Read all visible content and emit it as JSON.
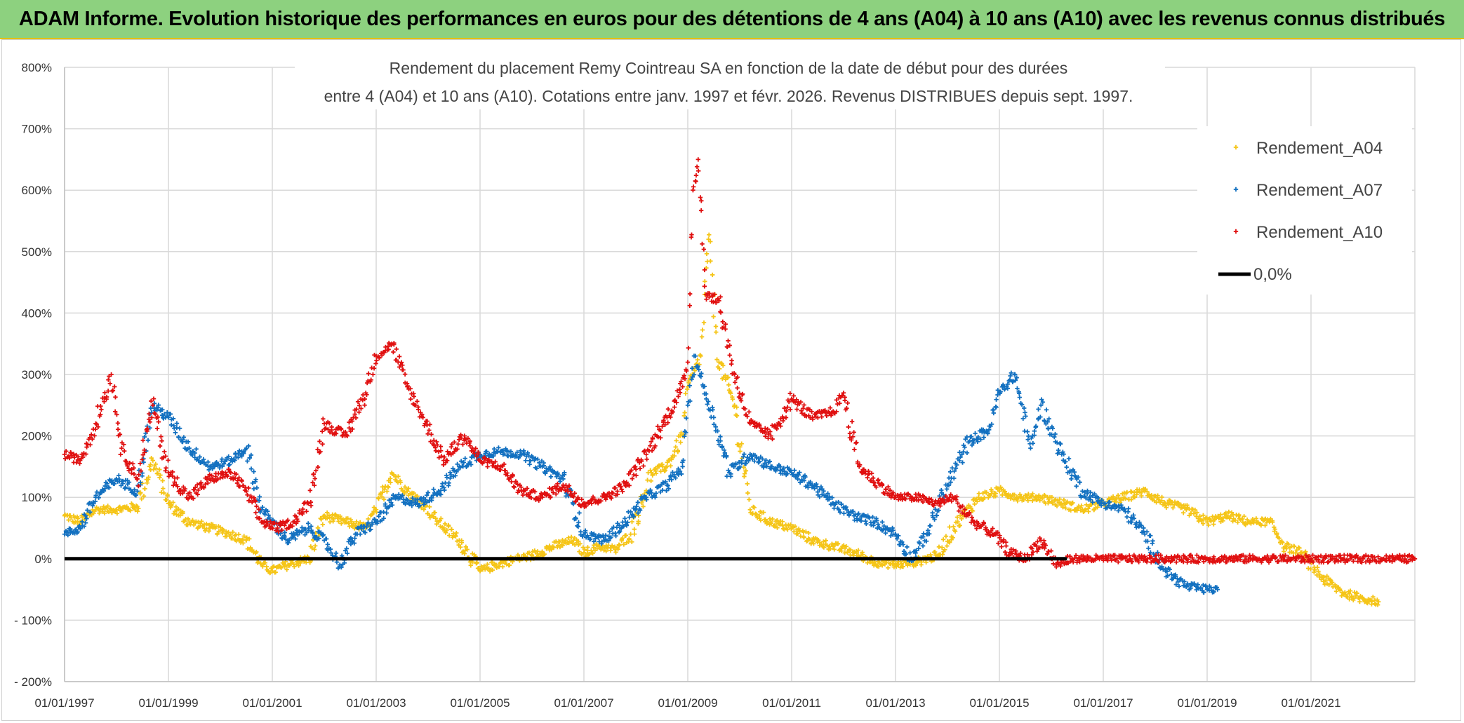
{
  "header": {
    "title": "ADAM Informe. Evolution historique des performances en euros pour des détentions de 4 ans (A04) à 10 ans (A10) avec les revenus connus distribués"
  },
  "chart_data": {
    "type": "scatter",
    "title_lines": [
      "Rendement du placement Remy Cointreau SA en fonction de la date de début pour des durées",
      "entre 4 (A04) et 10 ans (A10). Cotations entre janv. 1997 et févr. 2026. Revenus DISTRIBUES depuis sept. 1997."
    ],
    "xlabel": "",
    "ylabel": "",
    "x_tick_labels": [
      "01/01/1997",
      "01/01/1999",
      "01/01/2001",
      "01/01/2003",
      "01/01/2005",
      "01/01/2007",
      "01/01/2009",
      "01/01/2011",
      "01/01/2013",
      "01/01/2015",
      "01/01/2017",
      "01/01/2019",
      "01/01/2021"
    ],
    "xlim": [
      1997.0,
      2023.0
    ],
    "y_tick_labels": [
      "800%",
      "700%",
      "600%",
      "500%",
      "400%",
      "300%",
      "200%",
      "100%",
      "0%",
      "- 100%",
      "- 200%"
    ],
    "ylim": [
      -200,
      800
    ],
    "grid": true,
    "legend": {
      "placement": "top-right",
      "items": [
        "Rendement_A04",
        "Rendement_A07",
        "Rendement_A10",
        "0,0%"
      ]
    },
    "series": [
      {
        "name": "Rendement_A04",
        "color": "#f5c518",
        "marker": "plus",
        "x": [
          1997.0,
          1997.3,
          1997.6,
          1998.0,
          1998.4,
          1998.7,
          1999.0,
          1999.4,
          1999.8,
          2000.2,
          2000.5,
          2000.8,
          2001.0,
          2001.3,
          2001.7,
          2002.0,
          2002.4,
          2002.8,
          2003.0,
          2003.3,
          2003.6,
          2003.9,
          2004.2,
          2004.6,
          2005.0,
          2005.3,
          2005.7,
          2006.0,
          2006.4,
          2006.8,
          2007.0,
          2007.3,
          2007.6,
          2007.9,
          2008.3,
          2008.6,
          2008.9,
          2009.0,
          2009.1,
          2009.25,
          2009.4,
          2009.6,
          2009.9,
          2010.2,
          2010.6,
          2011.0,
          2011.4,
          2011.8,
          2012.2,
          2012.6,
          2013.0,
          2013.4,
          2013.8,
          2014.2,
          2014.6,
          2015.0,
          2015.4,
          2015.8,
          2016.2,
          2016.6,
          2017.0,
          2017.4,
          2017.8,
          2018.2,
          2018.6,
          2019.0,
          2019.4,
          2019.8,
          2020.2,
          2020.5,
          2020.8,
          2021.2,
          2021.6,
          2022.0,
          2022.3
        ],
        "y": [
          70,
          60,
          80,
          80,
          85,
          160,
          90,
          60,
          50,
          40,
          30,
          -10,
          -20,
          -10,
          0,
          70,
          60,
          50,
          80,
          140,
          110,
          90,
          60,
          30,
          -20,
          -10,
          0,
          5,
          20,
          30,
          10,
          20,
          15,
          40,
          140,
          150,
          200,
          280,
          300,
          330,
          520,
          320,
          250,
          80,
          60,
          50,
          30,
          20,
          10,
          -5,
          -10,
          -5,
          5,
          60,
          100,
          110,
          100,
          100,
          90,
          80,
          90,
          100,
          110,
          90,
          80,
          60,
          70,
          60,
          60,
          20,
          10,
          -30,
          -55,
          -65,
          -70
        ]
      },
      {
        "name": "Rendement_A07",
        "color": "#1270c0",
        "marker": "plus",
        "x": [
          1997.0,
          1997.3,
          1997.6,
          1998.0,
          1998.4,
          1998.7,
          1999.0,
          1999.4,
          1999.8,
          2000.2,
          2000.5,
          2000.8,
          2001.0,
          2001.3,
          2001.7,
          2002.0,
          2002.3,
          2002.6,
          2003.0,
          2003.4,
          2003.8,
          2004.2,
          2004.6,
          2005.0,
          2005.4,
          2005.8,
          2006.2,
          2006.6,
          2007.0,
          2007.4,
          2007.8,
          2008.2,
          2008.6,
          2008.9,
          2009.0,
          2009.15,
          2009.3,
          2009.5,
          2009.8,
          2010.2,
          2010.6,
          2011.0,
          2011.4,
          2011.8,
          2012.2,
          2012.6,
          2013.0,
          2013.3,
          2013.6,
          2014.0,
          2014.4,
          2014.8,
          2015.0,
          2015.3,
          2015.6,
          2015.8,
          2016.2,
          2016.6,
          2017.0,
          2017.4,
          2017.8,
          2018.2,
          2018.6,
          2019.0,
          2019.2
        ],
        "y": [
          40,
          50,
          100,
          130,
          110,
          250,
          230,
          180,
          150,
          160,
          180,
          80,
          60,
          30,
          50,
          30,
          -10,
          40,
          60,
          100,
          90,
          110,
          150,
          170,
          175,
          170,
          150,
          130,
          40,
          30,
          60,
          100,
          120,
          150,
          250,
          330,
          280,
          230,
          140,
          170,
          150,
          140,
          120,
          90,
          70,
          60,
          40,
          0,
          40,
          120,
          190,
          210,
          270,
          300,
          180,
          250,
          170,
          110,
          90,
          80,
          40,
          -20,
          -45,
          -50,
          -50
        ]
      },
      {
        "name": "Rendement_A10",
        "color": "#e01010",
        "marker": "plus",
        "x": [
          1997.0,
          1997.3,
          1997.6,
          1997.9,
          1998.1,
          1998.4,
          1998.7,
          1999.0,
          1999.4,
          1999.8,
          2000.2,
          2000.5,
          2000.8,
          2001.1,
          2001.4,
          2001.7,
          2002.0,
          2002.4,
          2002.8,
          2003.0,
          2003.3,
          2003.6,
          2003.9,
          2004.3,
          2004.7,
          2005.0,
          2005.4,
          2005.8,
          2006.2,
          2006.6,
          2007.0,
          2007.4,
          2007.8,
          2008.2,
          2008.6,
          2008.9,
          2009.0,
          2009.1,
          2009.2,
          2009.35,
          2009.6,
          2009.9,
          2010.2,
          2010.6,
          2011.0,
          2011.4,
          2011.8,
          2012.0,
          2012.3,
          2012.7,
          2013.0,
          2013.4,
          2013.8,
          2014.1,
          2014.5,
          2014.9,
          2015.2,
          2015.5,
          2015.8,
          2016.1,
          2016.4,
          2017.0,
          2018.0,
          2019.0,
          2020.0,
          2021.0,
          2022.0,
          2023.0
        ],
        "y": [
          170,
          160,
          220,
          300,
          180,
          130,
          250,
          140,
          100,
          130,
          140,
          110,
          60,
          50,
          60,
          90,
          220,
          200,
          270,
          330,
          350,
          280,
          230,
          160,
          200,
          160,
          150,
          110,
          100,
          120,
          90,
          100,
          120,
          170,
          230,
          280,
          320,
          600,
          650,
          430,
          420,
          300,
          220,
          200,
          260,
          230,
          240,
          270,
          150,
          120,
          100,
          100,
          90,
          100,
          60,
          40,
          10,
          0,
          30,
          -10,
          0,
          0,
          0,
          0,
          0,
          0,
          0,
          0
        ]
      }
    ],
    "reference_line": {
      "name": "0,0%",
      "y": 0,
      "color": "#000000"
    }
  }
}
